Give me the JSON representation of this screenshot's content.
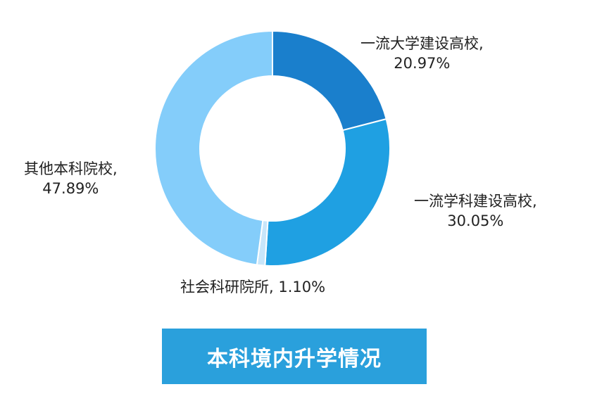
{
  "chart_data": {
    "type": "pie",
    "donut": true,
    "title": "本科境内升学情况",
    "slices": [
      {
        "label": "一流大学建设高校",
        "value": 20.97,
        "display": "20.97%",
        "color": "#1a7fcc"
      },
      {
        "label": "一流学科建设高校",
        "value": 30.05,
        "display": "30.05%",
        "color": "#1fa0e2"
      },
      {
        "label": "社会科研院所",
        "value": 1.1,
        "display": "1.10%",
        "color": "#c8e6fa"
      },
      {
        "label": "其他本科院校",
        "value": 47.89,
        "display": "47.89%",
        "color": "#84cdfa"
      }
    ],
    "title_color": "#2aa0dc"
  }
}
